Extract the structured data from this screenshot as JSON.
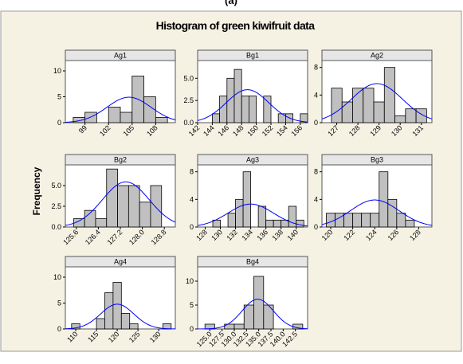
{
  "figure": {
    "label": "(a)",
    "title": "Histogram of green kiwifruit data",
    "y_label": "Frequency"
  },
  "chart_data": [
    {
      "type": "histogram",
      "title": "Ag1",
      "bins": [
        97.5,
        99,
        100.5,
        102,
        103.5,
        105,
        106.5,
        108,
        109.5
      ],
      "values": [
        1,
        2,
        0,
        3,
        2,
        9,
        5,
        1
      ],
      "xlim": [
        96.5,
        110.5
      ],
      "xticks": [
        99,
        102,
        105,
        108
      ],
      "ylim": [
        0,
        12
      ],
      "yticks": [
        0,
        5,
        10
      ],
      "color": "#c0c0c0",
      "normal_fit": {
        "mean": 104.6,
        "sd": 2.8,
        "color": "#0000ff"
      }
    },
    {
      "type": "histogram",
      "title": "Bg1",
      "bins": [
        144,
        145,
        146,
        147,
        148,
        149,
        150,
        151,
        152,
        153,
        154,
        155,
        156,
        157
      ],
      "values": [
        1,
        3,
        5,
        6,
        3,
        3,
        0,
        3,
        0,
        1,
        1,
        0,
        1
      ],
      "xlim": [
        142,
        157
      ],
      "xticks": [
        142,
        144,
        146,
        148,
        150,
        152,
        154,
        156
      ],
      "ylim": [
        0,
        7
      ],
      "yticks": [
        {
          "value": 0,
          "label": "0.0"
        },
        2.5,
        {
          "value": 5,
          "label": "5.0"
        }
      ],
      "color": "#c0c0c0",
      "normal_fit": {
        "mean": 148.8,
        "sd": 2.9,
        "color": "#0000ff"
      }
    },
    {
      "type": "histogram",
      "title": "Ag2",
      "bins": [
        126.75,
        127.25,
        127.75,
        128.25,
        128.75,
        129.25,
        129.75,
        130.25,
        130.75,
        131.25
      ],
      "values": [
        5,
        3,
        5,
        5,
        3,
        8,
        1,
        2,
        2
      ],
      "xlim": [
        126.3,
        131.5
      ],
      "xticks": [
        127,
        128,
        129,
        130,
        131
      ],
      "ylim": [
        0,
        9
      ],
      "yticks": [
        0,
        4,
        8
      ],
      "color": "#c0c0c0",
      "normal_fit": {
        "mean": 128.9,
        "sd": 1.2,
        "color": "#0000ff"
      }
    },
    {
      "type": "histogram",
      "title": "Bg2",
      "bins": [
        125.5,
        125.9,
        126.3,
        126.7,
        127.1,
        127.5,
        127.9,
        128.3,
        128.7
      ],
      "values": [
        1,
        2,
        1,
        7,
        5,
        5,
        3,
        5
      ],
      "xlim": [
        125.2,
        129.2
      ],
      "xticks": [
        125.6,
        126.4,
        127.2,
        {
          "value": 128,
          "label": "128.0"
        },
        128.8
      ],
      "ylim": [
        0,
        7.5
      ],
      "yticks": [
        {
          "value": 0,
          "label": "0.0"
        },
        2.5,
        {
          "value": 5,
          "label": "5.0"
        }
      ],
      "color": "#c0c0c0",
      "normal_fit": {
        "mean": 127.4,
        "sd": 0.85,
        "color": "#0000ff"
      }
    },
    {
      "type": "histogram",
      "title": "Ag3",
      "bins": [
        129,
        130,
        131,
        132,
        133,
        134,
        135,
        136,
        137,
        138,
        139,
        140,
        141
      ],
      "values": [
        1,
        0,
        2,
        4,
        8,
        0,
        3,
        1,
        1,
        1,
        3,
        1
      ],
      "xlim": [
        127,
        141.5
      ],
      "xticks": [
        128,
        130,
        132,
        134,
        136,
        138,
        140
      ],
      "ylim": [
        0,
        9
      ],
      "yticks": [
        0,
        4,
        8
      ],
      "color": "#c0c0c0",
      "normal_fit": {
        "mean": 134,
        "sd": 3,
        "color": "#0000ff"
      }
    },
    {
      "type": "histogram",
      "title": "Bg3",
      "bins": [
        119.6,
        120.4,
        121.2,
        122,
        122.8,
        123.6,
        124.4,
        125.2,
        126,
        126.8,
        127.6
      ],
      "values": [
        2,
        2,
        2,
        2,
        2,
        2,
        8,
        4,
        2,
        1
      ],
      "xlim": [
        119.2,
        129.2
      ],
      "xticks": [
        120,
        122,
        124,
        126,
        128
      ],
      "ylim": [
        0,
        9
      ],
      "yticks": [
        0,
        4,
        8
      ],
      "color": "#c0c0c0",
      "normal_fit": {
        "mean": 124,
        "sd": 2.2,
        "color": "#0000ff"
      }
    },
    {
      "type": "histogram",
      "title": "Ag4",
      "bins": [
        109,
        111,
        113,
        115,
        117,
        119,
        121,
        123,
        125,
        127,
        129,
        131,
        133
      ],
      "values": [
        1,
        0,
        0,
        2,
        7,
        9,
        3,
        1,
        0,
        0,
        0,
        1
      ],
      "xlim": [
        107.5,
        134
      ],
      "xticks": [
        110,
        115,
        120,
        125,
        130
      ],
      "ylim": [
        0,
        12
      ],
      "yticks": [
        0,
        5,
        10
      ],
      "color": "#c0c0c0",
      "normal_fit": {
        "mean": 120,
        "sd": 4,
        "color": "#0000ff"
      }
    },
    {
      "type": "histogram",
      "title": "Bg4",
      "bins": [
        124,
        126,
        128,
        130,
        132,
        134,
        136,
        138,
        140,
        142,
        144
      ],
      "values": [
        1,
        0,
        1,
        1,
        5,
        11,
        5,
        0,
        0,
        1
      ],
      "xlim": [
        122.5,
        145
      ],
      "xticks": [
        {
          "value": 125,
          "label": "125.0"
        },
        127.5,
        {
          "value": 130,
          "label": "130.0"
        },
        132.5,
        {
          "value": 135,
          "label": "135.0"
        },
        137.5,
        {
          "value": 140,
          "label": "140.0"
        },
        142.5
      ],
      "ylim": [
        0,
        13
      ],
      "yticks": [
        0,
        5,
        10
      ],
      "color": "#c0c0c0",
      "normal_fit": {
        "mean": 134.8,
        "sd": 3.2,
        "color": "#0000ff"
      }
    }
  ]
}
